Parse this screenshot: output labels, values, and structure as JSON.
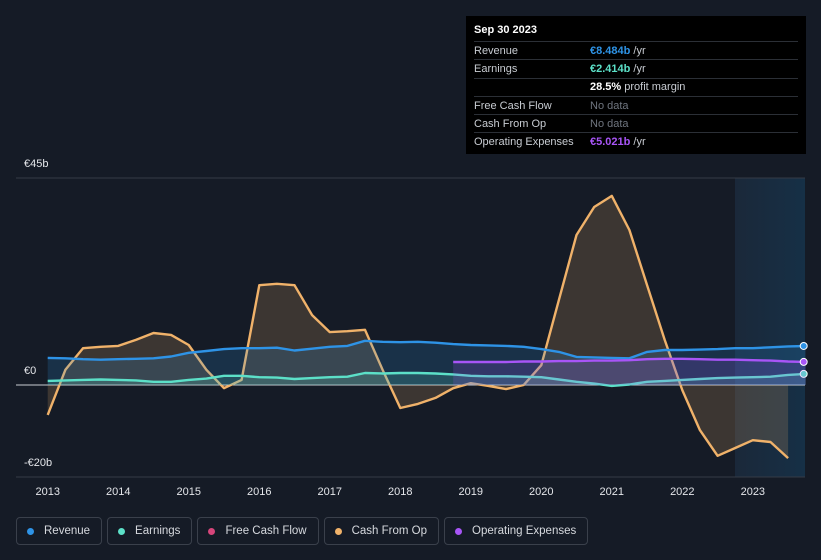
{
  "chart_data": {
    "type": "line",
    "x": [
      2013,
      2013.25,
      2013.5,
      2013.75,
      2014,
      2014.25,
      2014.5,
      2014.75,
      2015,
      2015.25,
      2015.5,
      2015.75,
      2016,
      2016.25,
      2016.5,
      2016.75,
      2017,
      2017.25,
      2017.5,
      2017.75,
      2018,
      2018.25,
      2018.5,
      2018.75,
      2019,
      2019.25,
      2019.5,
      2019.75,
      2020,
      2020.25,
      2020.5,
      2020.75,
      2021,
      2021.25,
      2021.5,
      2021.75,
      2022,
      2022.25,
      2022.5,
      2022.75,
      2023,
      2023.25,
      2023.5,
      2023.75
    ],
    "xlim": [
      2012.55,
      2023.74
    ],
    "xticks": [
      2013,
      2014,
      2015,
      2016,
      2017,
      2018,
      2019,
      2020,
      2021,
      2022,
      2023
    ],
    "ylim": [
      -20,
      45
    ],
    "yticks": [
      {
        "value": 45,
        "label": "€45b"
      },
      {
        "value": 0,
        "label": "€0"
      },
      {
        "value": -20,
        "label": "-€20b"
      }
    ],
    "grid": true,
    "series": [
      {
        "name": "Revenue",
        "color": "#2e93e6",
        "values": [
          5.9,
          5.8,
          5.6,
          5.5,
          5.6,
          5.7,
          5.8,
          6.2,
          7.0,
          7.4,
          7.8,
          8.0,
          8.0,
          8.1,
          7.5,
          7.9,
          8.3,
          8.5,
          9.6,
          9.4,
          9.3,
          9.4,
          9.2,
          8.9,
          8.7,
          8.6,
          8.5,
          8.3,
          7.8,
          7.2,
          6.1,
          6.0,
          5.9,
          5.8,
          7.2,
          7.6,
          7.6,
          7.7,
          7.8,
          8.0,
          8.0,
          8.2,
          8.4,
          8.484
        ]
      },
      {
        "name": "Earnings",
        "color": "#5ce0c8",
        "values": [
          0.9,
          1.0,
          1.1,
          1.2,
          1.1,
          1.0,
          0.7,
          0.7,
          1.1,
          1.4,
          2.0,
          2.0,
          1.7,
          1.6,
          1.3,
          1.5,
          1.7,
          1.8,
          2.6,
          2.5,
          2.6,
          2.6,
          2.5,
          2.3,
          2.0,
          1.9,
          1.9,
          1.8,
          1.7,
          1.2,
          0.7,
          0.3,
          -0.2,
          0.1,
          0.7,
          0.9,
          1.1,
          1.3,
          1.5,
          1.6,
          1.7,
          1.8,
          2.2,
          2.414
        ]
      },
      {
        "name": "Free Cash Flow",
        "color": "#d6457a",
        "values": [
          null,
          null,
          null,
          null,
          null,
          null,
          null,
          null,
          null,
          null,
          null,
          null,
          null,
          null,
          null,
          null,
          null,
          null,
          null,
          null,
          null,
          null,
          null,
          null,
          null,
          null,
          null,
          null,
          null,
          null,
          null,
          null,
          null,
          null,
          null,
          null,
          null,
          null,
          null,
          null,
          null,
          null,
          null,
          null
        ]
      },
      {
        "name": "Cash From Op",
        "color": "#f0b26a",
        "values": [
          -6.5,
          3.3,
          8,
          8.3,
          8.5,
          9.8,
          11.3,
          10.9,
          8.7,
          3.3,
          -0.7,
          1.1,
          21.7,
          22,
          21.7,
          15.2,
          11.5,
          11.7,
          12,
          3.3,
          -5,
          -4.1,
          -2.8,
          -0.7,
          0.4,
          -0.2,
          -0.9,
          0,
          4.3,
          18.5,
          32.6,
          38.7,
          41.1,
          33.7,
          21.7,
          9.8,
          -1.1,
          -9.8,
          -15.4,
          -13.7,
          -12,
          -12.4,
          -15.9,
          null
        ]
      },
      {
        "name": "Operating Expenses",
        "color": "#a855f7",
        "values": [
          null,
          null,
          null,
          null,
          null,
          null,
          null,
          null,
          null,
          null,
          null,
          null,
          null,
          null,
          null,
          null,
          null,
          null,
          null,
          null,
          null,
          null,
          null,
          5.0,
          5.0,
          5.0,
          5.0,
          5.1,
          5.1,
          5.2,
          5.2,
          5.3,
          5.3,
          5.4,
          5.6,
          5.7,
          5.7,
          5.6,
          5.5,
          5.5,
          5.4,
          5.3,
          5.1,
          5.021
        ]
      }
    ]
  },
  "tooltip": {
    "date": "Sep 30 2023",
    "rows": [
      {
        "label": "Revenue",
        "value": "€8.484b",
        "unit": " /yr"
      },
      {
        "label": "Earnings",
        "value": "€2.414b",
        "unit": " /yr"
      },
      {
        "label": "",
        "value": "28.5%",
        "unit": " profit margin"
      },
      {
        "label": "Free Cash Flow",
        "value": "No data"
      },
      {
        "label": "Cash From Op",
        "value": "No data"
      },
      {
        "label": "Operating Expenses",
        "value": "€5.021b",
        "unit": " /yr"
      }
    ]
  }
}
